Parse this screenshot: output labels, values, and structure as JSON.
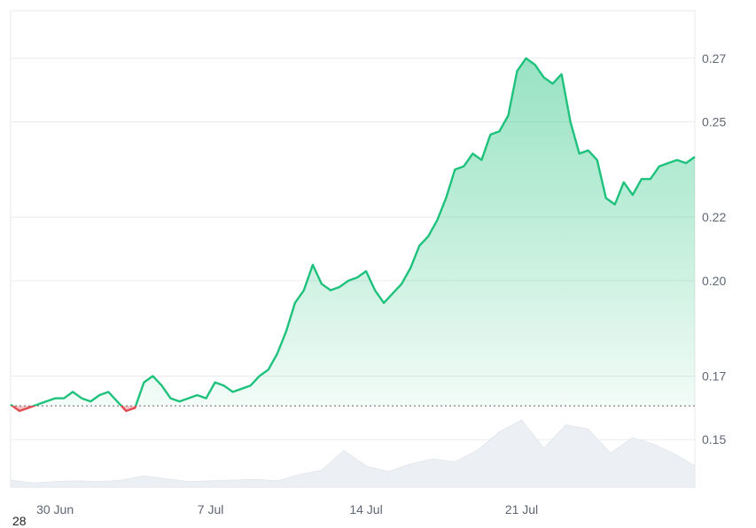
{
  "chart_data": {
    "type": "area",
    "baseline_value": 0.1606,
    "y_ticks": [
      0.27,
      0.25,
      0.22,
      0.2,
      0.17,
      0.15
    ],
    "y_tick_labels": [
      "0.27",
      "0.25",
      "0.22",
      "0.20",
      "0.17",
      "0.15"
    ],
    "ylim": [
      0.135,
      0.285
    ],
    "x_ticks": [
      "30 Jun",
      "7 Jul",
      "14 Jul",
      "21 Jul"
    ],
    "x_tick_days": [
      2,
      9,
      16,
      23
    ],
    "xlim_days": [
      0,
      30.8
    ],
    "grid": true,
    "series": [
      {
        "values_x_days": [
          0,
          0.4,
          0.8,
          1.2,
          1.6,
          2.0,
          2.4,
          2.8,
          3.2,
          3.6,
          4.0,
          4.4,
          4.8,
          5.2,
          5.6,
          6.0,
          6.4,
          6.8,
          7.2,
          7.6,
          8.0,
          8.4,
          8.8,
          9.2,
          9.6,
          10.0,
          10.4,
          10.8,
          11.2,
          11.6,
          12.0,
          12.4,
          12.8,
          13.2,
          13.6,
          14.0,
          14.4,
          14.8,
          15.2,
          15.6,
          16.0,
          16.4,
          16.8,
          17.2,
          17.6,
          18.0,
          18.4,
          18.8,
          19.2,
          19.6,
          20.0,
          20.4,
          20.8,
          21.2,
          21.6,
          22.0,
          22.4,
          22.8,
          23.2,
          23.6,
          24.0,
          24.4,
          24.8,
          25.2,
          25.6,
          26.0,
          26.4,
          26.8,
          27.2,
          27.6,
          28.0,
          28.4,
          28.8,
          29.2,
          29.6,
          30.0,
          30.4,
          30.8
        ],
        "values_y": [
          0.161,
          0.159,
          0.16,
          0.161,
          0.162,
          0.163,
          0.163,
          0.165,
          0.163,
          0.162,
          0.164,
          0.165,
          0.162,
          0.159,
          0.16,
          0.168,
          0.17,
          0.167,
          0.163,
          0.162,
          0.163,
          0.164,
          0.163,
          0.168,
          0.167,
          0.165,
          0.166,
          0.167,
          0.17,
          0.172,
          0.177,
          0.184,
          0.193,
          0.197,
          0.205,
          0.199,
          0.197,
          0.198,
          0.2,
          0.201,
          0.203,
          0.197,
          0.193,
          0.196,
          0.199,
          0.204,
          0.211,
          0.214,
          0.219,
          0.226,
          0.235,
          0.236,
          0.24,
          0.238,
          0.246,
          0.247,
          0.252,
          0.266,
          0.27,
          0.268,
          0.264,
          0.262,
          0.265,
          0.25,
          0.24,
          0.241,
          0.238,
          0.226,
          0.224,
          0.231,
          0.227,
          0.232,
          0.232,
          0.236,
          0.237,
          0.238,
          0.237,
          0.239
        ]
      }
    ],
    "volume": {
      "values_x_days": [
        0,
        1,
        2,
        3,
        4,
        5,
        6,
        7,
        8,
        9,
        10,
        11,
        12,
        13,
        14,
        15,
        16,
        17,
        18,
        19,
        20,
        21,
        22,
        23,
        24,
        25,
        26,
        27,
        28,
        29,
        30,
        30.8
      ],
      "values": [
        0.1,
        0.06,
        0.08,
        0.09,
        0.08,
        0.1,
        0.16,
        0.12,
        0.08,
        0.09,
        0.1,
        0.11,
        0.09,
        0.18,
        0.24,
        0.52,
        0.3,
        0.22,
        0.33,
        0.4,
        0.36,
        0.52,
        0.78,
        0.95,
        0.55,
        0.88,
        0.82,
        0.48,
        0.7,
        0.6,
        0.45,
        0.3
      ]
    }
  },
  "colors": {
    "up_line": "#1fc27c",
    "down_line": "#e14b52",
    "grid": "#e9ecef",
    "baseline": "#60646b",
    "volume": "#eceff3"
  },
  "stray_text": "28"
}
